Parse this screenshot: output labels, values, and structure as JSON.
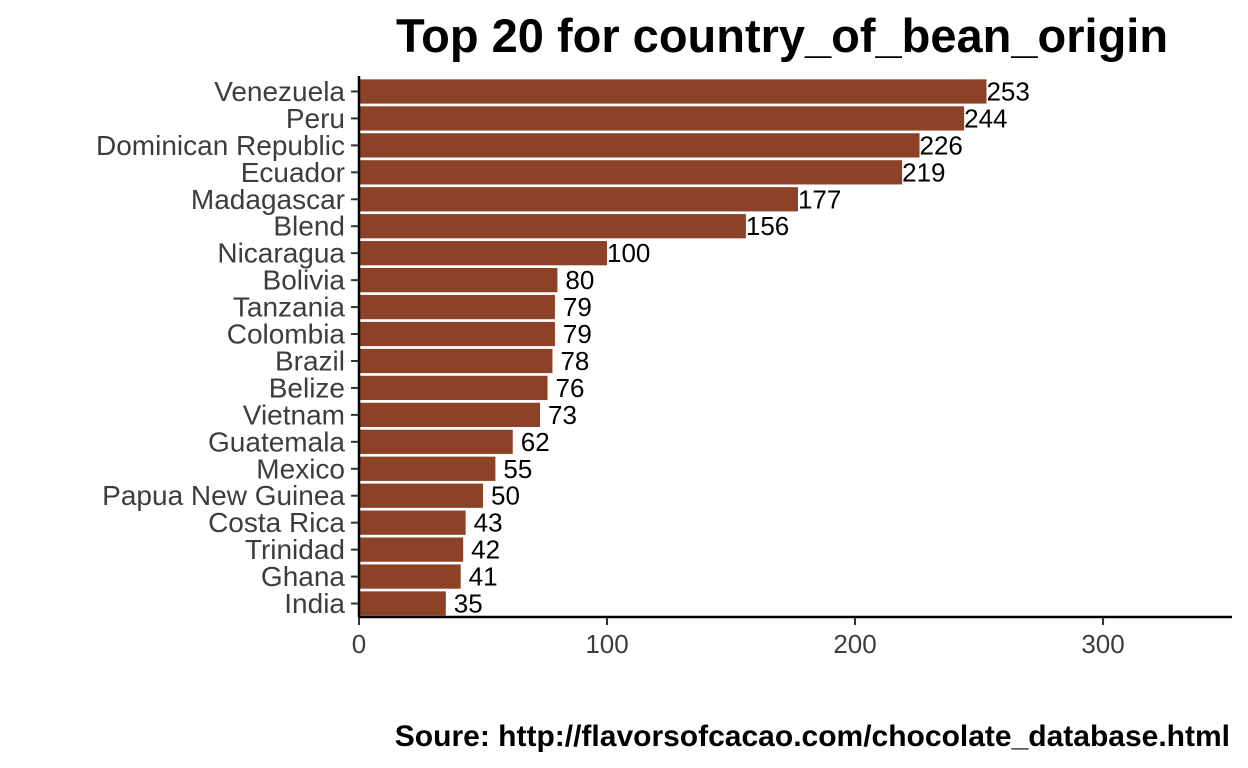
{
  "chart_data": {
    "type": "bar",
    "orientation": "horizontal",
    "title": "Top 20 for country_of_bean_origin",
    "caption": "Soure: http://flavorsofcacao.com/chocolate_database.html",
    "xlabel": "",
    "ylabel": "",
    "categories": [
      "Venezuela",
      "Peru",
      "Dominican Republic",
      "Ecuador",
      "Madagascar",
      "Blend",
      "Nicaragua",
      "Bolivia",
      "Tanzania",
      "Colombia",
      "Brazil",
      "Belize",
      "Vietnam",
      "Guatemala",
      "Mexico",
      "Papua New Guinea",
      "Costa Rica",
      "Trinidad",
      "Ghana",
      "India"
    ],
    "values": [
      253,
      244,
      226,
      219,
      177,
      156,
      100,
      80,
      79,
      79,
      78,
      76,
      73,
      62,
      55,
      50,
      43,
      42,
      41,
      35
    ],
    "xticks": [
      0,
      100,
      200,
      300
    ],
    "xlim": [
      0,
      352
    ],
    "bar_color": "#8B4226",
    "grid": false,
    "legend": "none"
  }
}
